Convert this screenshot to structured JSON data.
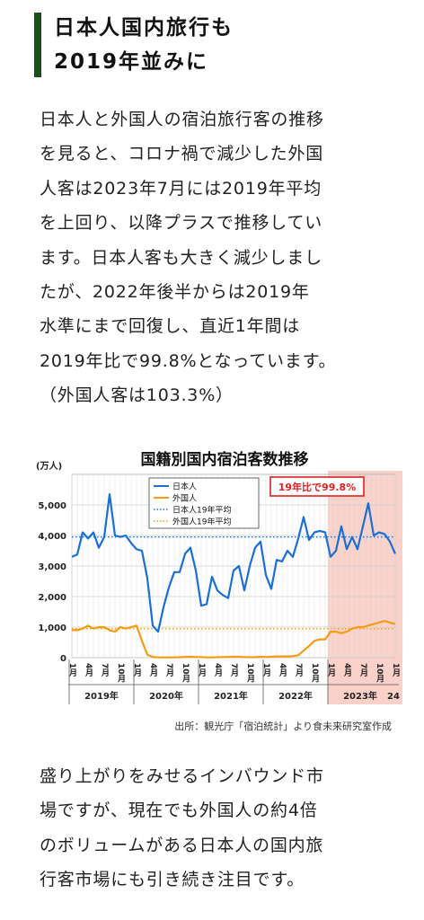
{
  "heading": {
    "lines": [
      "日本人国内旅行も",
      "2019年並みに"
    ]
  },
  "intro": {
    "lines": [
      "日本人と外国人の宿泊旅行客の推移",
      "を見ると、コロナ禍で減少した外国",
      "人客は2023年7月には2019年平均",
      "を上回り、以降プラスで推移してい",
      "ます。日本人客も大きく減少しまし",
      "たが、2022年後半からは2019年",
      "水準にまで回復し、直近1年間は",
      "2019年比で99.8%となっています。",
      "（外国人客は103.3%）"
    ]
  },
  "chart_data": {
    "type": "line",
    "title": "国籍別国内宿泊客数推移",
    "ylabel": "(万人)",
    "ylim": [
      0,
      6000
    ],
    "yticks": [
      "0",
      "1,000",
      "2,000",
      "3,000",
      "4,000",
      "5,000"
    ],
    "grid": true,
    "legend_position": "top-center",
    "callout": "19年比で99.8%",
    "colors": {
      "japanese": "#1a6fd6",
      "foreign": "#f49c16",
      "highlight": "#f9c9c0",
      "callout": "#e02020"
    },
    "x_month_labels": [
      "1月",
      "4月",
      "7月",
      "10月"
    ],
    "x_month_labels_last": "1月",
    "x_year_labels": [
      "2019年",
      "2020年",
      "2021年",
      "2022年",
      "2023年",
      "24"
    ],
    "highlight_range": [
      "2023年1月",
      "2024年1月"
    ],
    "series": [
      {
        "name": "日本人",
        "style": "solid",
        "values": [
          3300,
          3380,
          4100,
          3900,
          4100,
          3600,
          3950,
          5350,
          4000,
          3950,
          4000,
          3750,
          3550,
          3500,
          2600,
          1050,
          850,
          1650,
          2300,
          2800,
          2800,
          3400,
          3600,
          2850,
          1700,
          1750,
          2650,
          2200,
          2050,
          1950,
          2850,
          3000,
          2200,
          3000,
          3600,
          3800,
          2700,
          2250,
          3200,
          3150,
          3500,
          3300,
          3900,
          4600,
          3850,
          4100,
          4150,
          4100,
          3300,
          3500,
          4300,
          3550,
          3950,
          3550,
          4300,
          5050,
          4000,
          4100,
          4050,
          3800,
          3400
        ]
      },
      {
        "name": "外国人",
        "style": "solid",
        "values": [
          900,
          900,
          950,
          1050,
          950,
          1000,
          1000,
          900,
          850,
          1000,
          950,
          1000,
          1050,
          550,
          100,
          20,
          10,
          10,
          10,
          10,
          15,
          25,
          30,
          20,
          20,
          10,
          10,
          15,
          20,
          25,
          30,
          30,
          20,
          15,
          15,
          30,
          20,
          30,
          40,
          40,
          40,
          50,
          80,
          230,
          380,
          550,
          600,
          600,
          850,
          850,
          800,
          850,
          950,
          1000,
          1000,
          1050,
          1100,
          1150,
          1200,
          1150,
          1100
        ]
      },
      {
        "name": "日本人19年平均",
        "style": "dotted",
        "value": 3950
      },
      {
        "name": "外国人19年平均",
        "style": "dotted",
        "value": 950
      }
    ]
  },
  "source": "出所：観光庁「宿泊統計」より食未来研究室作成",
  "outro": {
    "lines": [
      "盛り上がりをみせるインバウンド市",
      "場ですが、現在でも外国人の約4倍",
      "のボリュームがある日本人の国内旅",
      "行客市場にも引き続き注目です。"
    ]
  }
}
